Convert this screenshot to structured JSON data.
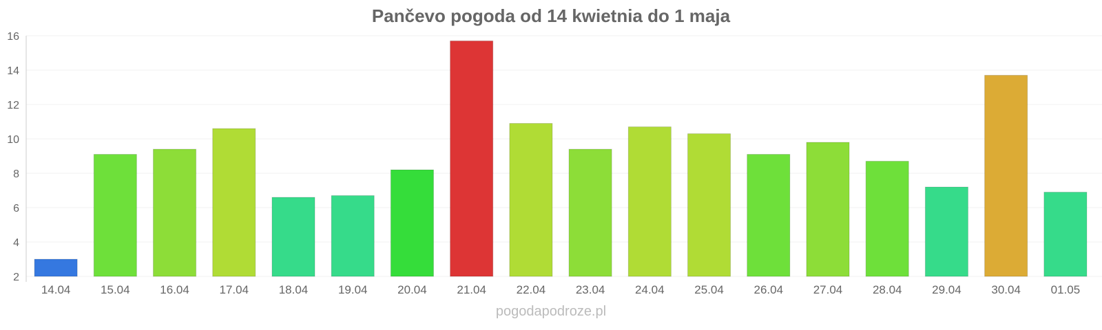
{
  "chart_data": {
    "type": "bar",
    "title": "Pančevo pogoda od 14 kwietnia do 1 maja",
    "categories": [
      "14.04",
      "15.04",
      "16.04",
      "17.04",
      "18.04",
      "19.04",
      "20.04",
      "21.04",
      "22.04",
      "23.04",
      "24.04",
      "25.04",
      "26.04",
      "27.04",
      "28.04",
      "29.04",
      "30.04",
      "01.05"
    ],
    "values": [
      3.0,
      9.1,
      9.4,
      10.6,
      6.6,
      6.7,
      8.2,
      15.7,
      10.9,
      9.4,
      10.7,
      10.3,
      9.1,
      9.8,
      8.7,
      7.2,
      13.7,
      6.9
    ],
    "colors": [
      "#3578e0",
      "#6ee03a",
      "#8ddd38",
      "#b0dc35",
      "#36db8a",
      "#36db8a",
      "#35dd3a",
      "#dd3535",
      "#b0dc35",
      "#8ddd38",
      "#b0dc35",
      "#b0dc35",
      "#6ee03a",
      "#8ddd38",
      "#6ee03a",
      "#36db8a",
      "#dcab35",
      "#36db8a"
    ],
    "ylim": [
      2,
      16
    ],
    "yticks": [
      2,
      4,
      6,
      8,
      10,
      12,
      14,
      16
    ],
    "grid": true,
    "xlabel": "",
    "ylabel": ""
  },
  "watermark": "pogodapodroze.pl"
}
